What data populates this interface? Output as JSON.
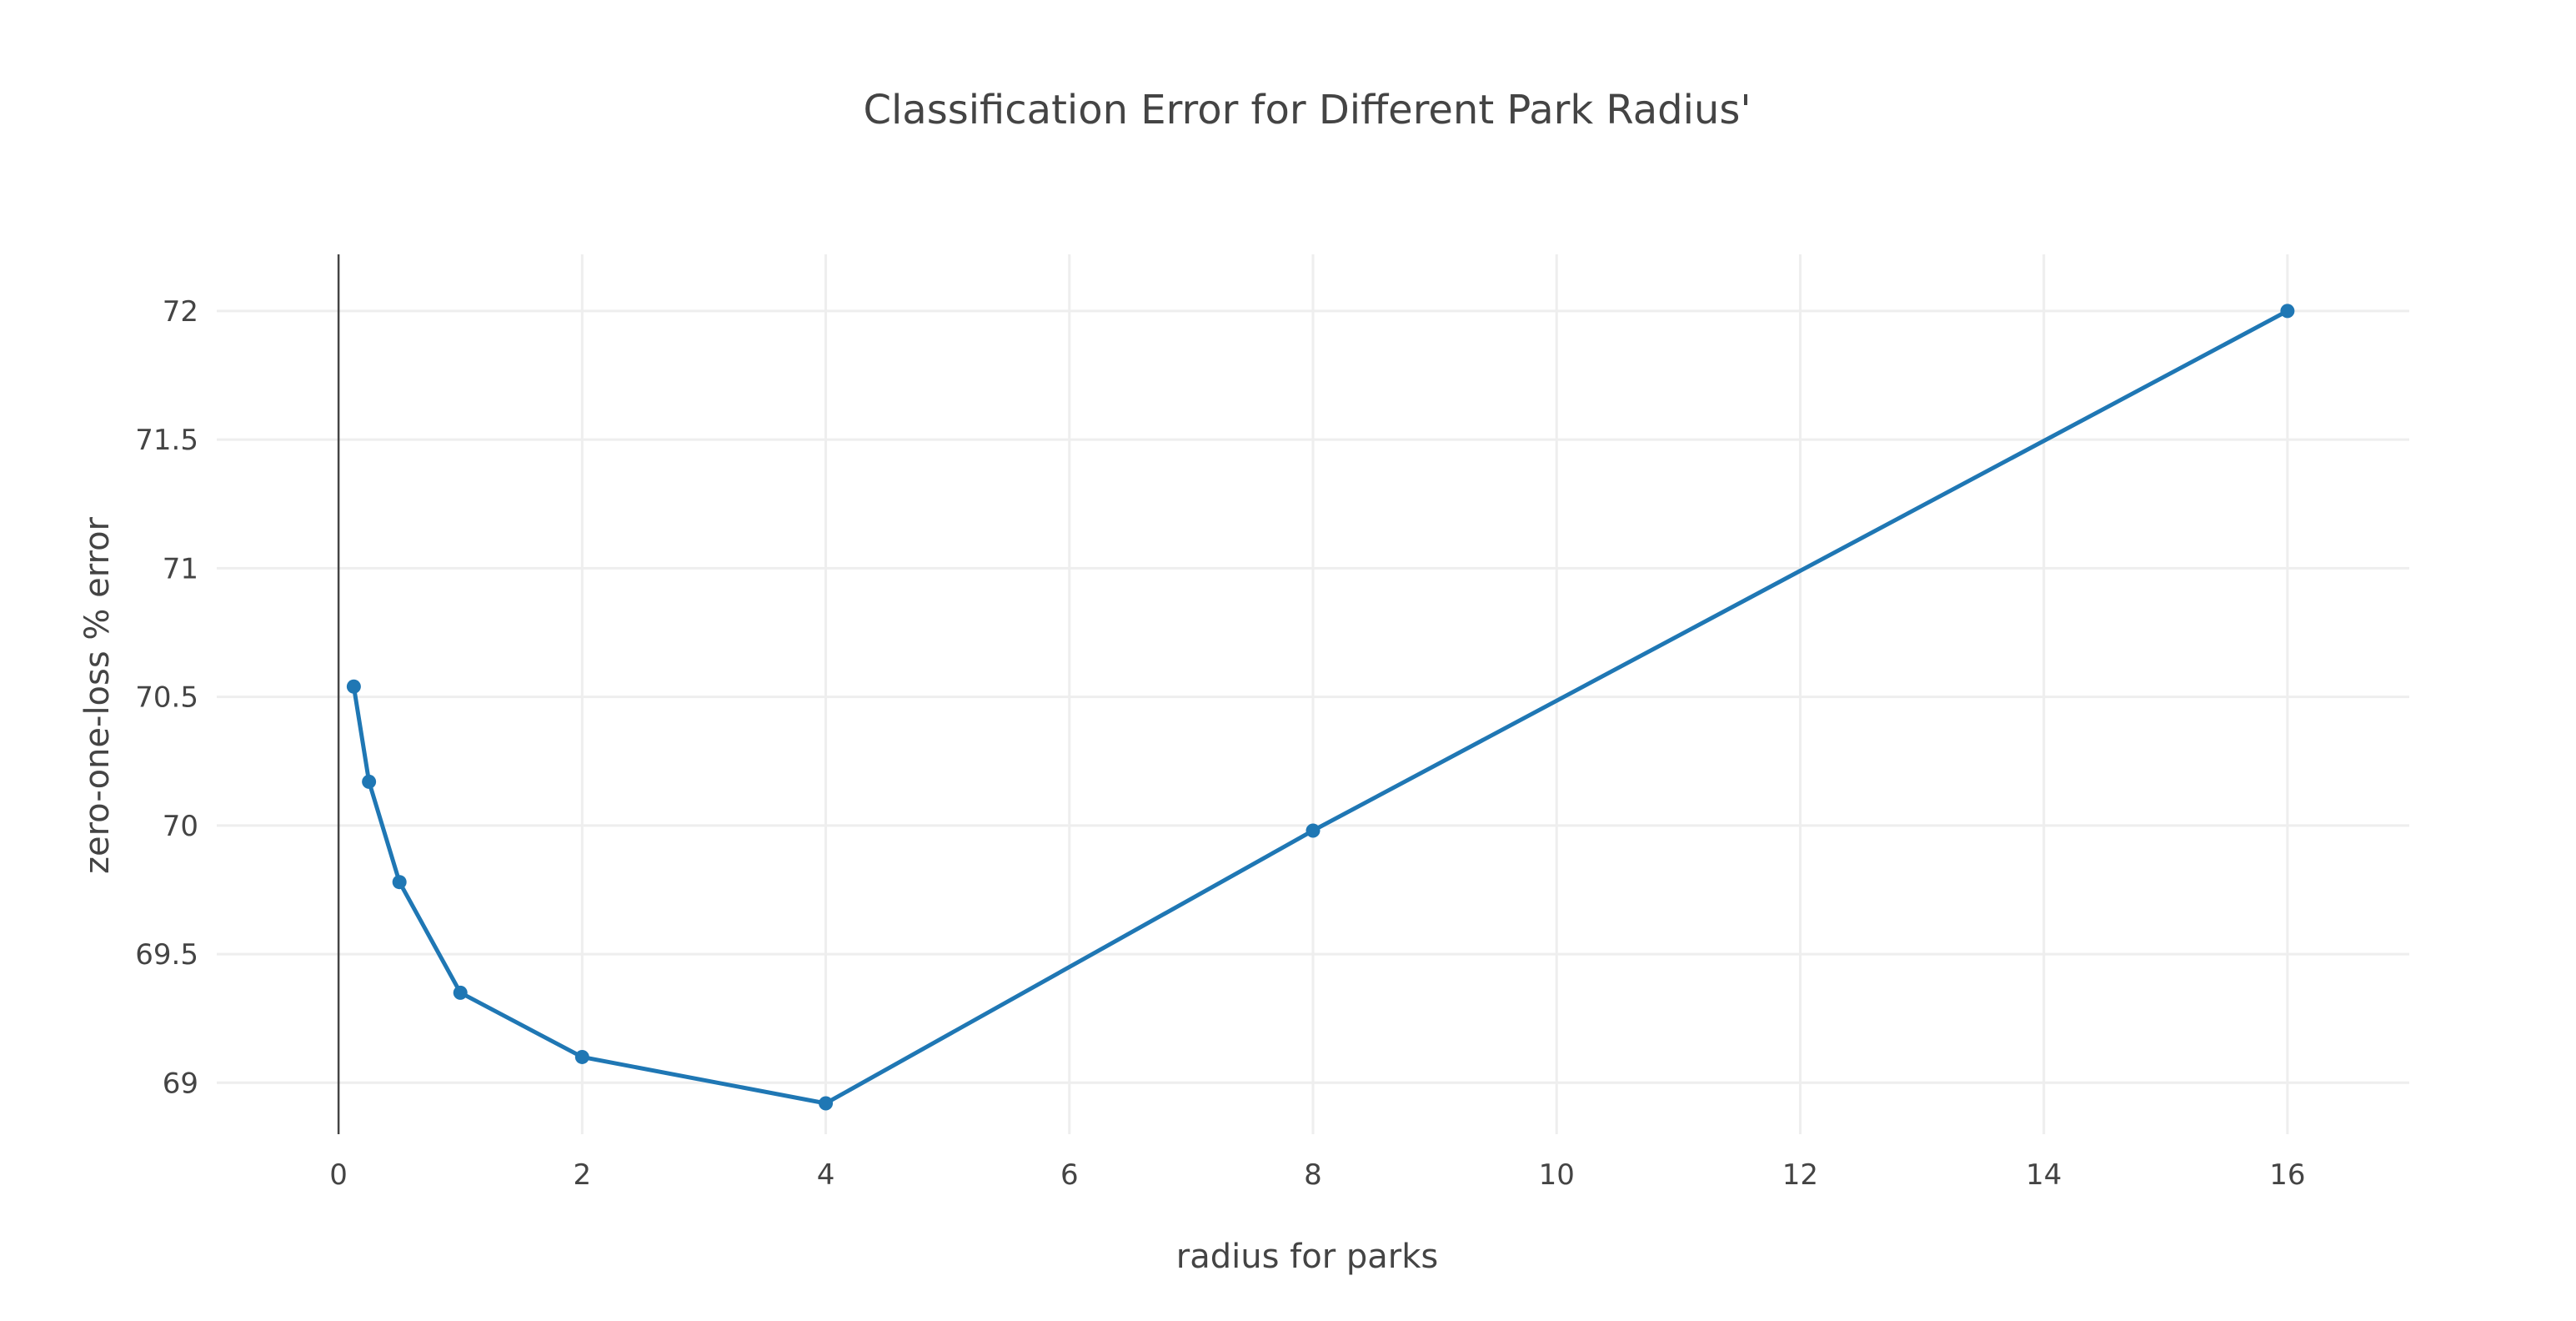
{
  "chart_data": {
    "type": "line",
    "title": "Classification Error for Different Park Radius'",
    "xlabel": "radius for parks",
    "ylabel": "zero-one-loss % error",
    "xlim": [
      -1,
      17
    ],
    "ylim": [
      68.8,
      72.22
    ],
    "x_ticks": [
      0,
      2,
      4,
      6,
      8,
      10,
      12,
      14,
      16
    ],
    "x_tick_labels": [
      "0",
      "2",
      "4",
      "6",
      "8",
      "10",
      "12",
      "14",
      "16"
    ],
    "y_ticks": [
      69,
      69.5,
      70,
      70.5,
      71,
      71.5,
      72
    ],
    "y_tick_labels": [
      "69",
      "69.5",
      "70",
      "70.5",
      "71",
      "71.5",
      "72"
    ],
    "grid": true,
    "legend": "none",
    "series": [
      {
        "color": "#1f77b4",
        "x": [
          0.125,
          0.25,
          0.5,
          1,
          2,
          4,
          8,
          16
        ],
        "y": [
          70.54,
          70.17,
          69.78,
          69.35,
          69.1,
          68.92,
          69.98,
          72.0
        ]
      }
    ]
  }
}
